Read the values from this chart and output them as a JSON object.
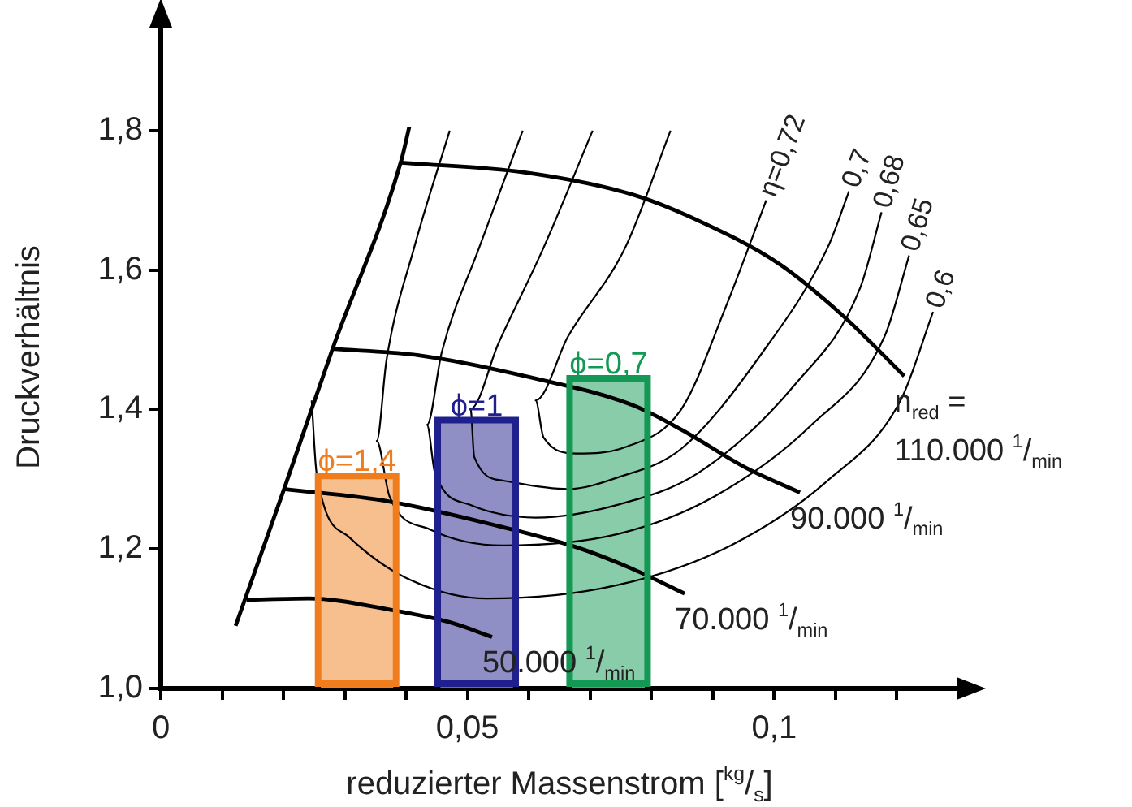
{
  "chart_data": {
    "type": "line",
    "xlabel": "reduzierter Massenstrom [$^{kg}$/$_{s}$]",
    "ylabel": "Druckverhältnis",
    "xlim": [
      0,
      0.13
    ],
    "ylim": [
      1,
      1.95
    ],
    "xticks": [
      {
        "value": 0,
        "label": "0"
      },
      {
        "value": 0.01,
        "label": null
      },
      {
        "value": 0.02,
        "label": null
      },
      {
        "value": 0.03,
        "label": null
      },
      {
        "value": 0.04,
        "label": null
      },
      {
        "value": 0.05,
        "label": "0,05"
      },
      {
        "value": 0.06,
        "label": null
      },
      {
        "value": 0.07,
        "label": null
      },
      {
        "value": 0.08,
        "label": null
      },
      {
        "value": 0.09,
        "label": null
      },
      {
        "value": 0.1,
        "label": "0,1"
      },
      {
        "value": 0.11,
        "label": null
      },
      {
        "value": 0.12,
        "label": null
      }
    ],
    "yticks": [
      {
        "value": 1,
        "label": "1,0"
      },
      {
        "value": 1.2,
        "label": "1,2"
      },
      {
        "value": 1.4,
        "label": "1,4"
      },
      {
        "value": 1.6,
        "label": "1,6"
      },
      {
        "value": 1.8,
        "label": "1,8"
      }
    ],
    "legend": false,
    "grid": false,
    "series": [
      {
        "type": "bar",
        "name": "ϕ=1,4",
        "color": "#f7be8e",
        "x": [
          0.032
        ],
        "values": [
          1.3
        ]
      },
      {
        "type": "bar",
        "name": "ϕ=1",
        "color": "#8f8fc6",
        "x": [
          0.0515
        ],
        "values": [
          1.38
        ]
      },
      {
        "type": "bar",
        "name": "ϕ=0,7",
        "color": "#89cca9",
        "x": [
          0.073
        ],
        "values": [
          1.44
        ]
      },
      {
        "color": "#000000",
        "x": [
          0.0122,
          0.0201,
          0.028,
          0.0392,
          0.0405
        ],
        "values": [
          1.09,
          1.286,
          1.487,
          1.757,
          1.805
        ]
      },
      {
        "name": "50.000 $^{1}$/$_{min}$",
        "color": "#000000",
        "x": [
          0.014,
          0.0241,
          0.0373,
          0.0471,
          0.054
        ],
        "values": [
          1.127,
          1.129,
          1.113,
          1.095,
          1.074
        ]
      },
      {
        "name": "70.000 $^{1}$/$_{min}$",
        "color": "#000000",
        "x": [
          0.0201,
          0.0373,
          0.055,
          0.0683,
          0.077,
          0.0854
        ],
        "values": [
          1.286,
          1.268,
          1.233,
          1.201,
          1.171,
          1.136
        ]
      },
      {
        "name": "90.000 $^{1}$/$_{min}$",
        "color": "#000000",
        "x": [
          0.028,
          0.0418,
          0.0593,
          0.077,
          0.0849,
          0.0955,
          0.1042
        ],
        "values": [
          1.487,
          1.478,
          1.448,
          1.406,
          1.371,
          1.316,
          1.281
        ]
      },
      {
        "name": "n$_{red}$ =\n110.000 $^{1}$/$_{min}$",
        "color": "#000000",
        "x": [
          0.0392,
          0.0593,
          0.077,
          0.0876,
          0.1008,
          0.1114,
          0.1212
        ],
        "values": [
          1.754,
          1.74,
          1.708,
          1.671,
          1.609,
          1.533,
          1.448
        ]
      },
      {
        "name": "η=0,72",
        "color": "#000000",
        "x": [
          0.0831,
          0.0757,
          0.0664,
          0.0611,
          0.0624,
          0.0677,
          0.0757,
          0.0849,
          0.0921,
          0.0987
        ],
        "values": [
          1.8,
          1.632,
          1.505,
          1.413,
          1.36,
          1.337,
          1.346,
          1.401,
          1.547,
          1.7
        ]
      },
      {
        "name": "0,7",
        "color": "#000000",
        "x": [
          0.0704,
          0.0624,
          0.055,
          0.0505,
          0.0511,
          0.0558,
          0.0664,
          0.0743,
          0.0849,
          0.0981,
          0.1087,
          0.1122
        ],
        "values": [
          1.8,
          1.632,
          1.494,
          1.401,
          1.332,
          1.298,
          1.286,
          1.302,
          1.344,
          1.482,
          1.632,
          1.713
        ]
      },
      {
        "name": "0,68",
        "color": "#000000",
        "x": [
          0.059,
          0.0519,
          0.0458,
          0.0434,
          0.0447,
          0.0505,
          0.0611,
          0.0743,
          0.0876,
          0.1034,
          0.114,
          0.1175
        ],
        "values": [
          1.8,
          1.632,
          1.482,
          1.378,
          1.309,
          1.263,
          1.245,
          1.263,
          1.309,
          1.436,
          1.574,
          1.683
        ]
      },
      {
        "name": "0,65",
        "color": "#000000",
        "x": [
          0.0471,
          0.0413,
          0.0368,
          0.0352,
          0.0373,
          0.0439,
          0.0558,
          0.0743,
          0.0902,
          0.1061,
          0.118,
          0.122
        ],
        "values": [
          1.8,
          1.632,
          1.471,
          1.355,
          1.275,
          1.228,
          1.205,
          1.221,
          1.275,
          1.378,
          1.505,
          1.621
        ]
      },
      {
        "name": "0,6",
        "color": "#000000",
        "x": [
          0.0246,
          0.0254,
          0.0307,
          0.0399,
          0.0532,
          0.0743,
          0.0929,
          0.1087,
          0.1206,
          0.1259
        ],
        "values": [
          1.413,
          1.309,
          1.217,
          1.159,
          1.129,
          1.148,
          1.205,
          1.298,
          1.413,
          1.54
        ]
      }
    ]
  }
}
